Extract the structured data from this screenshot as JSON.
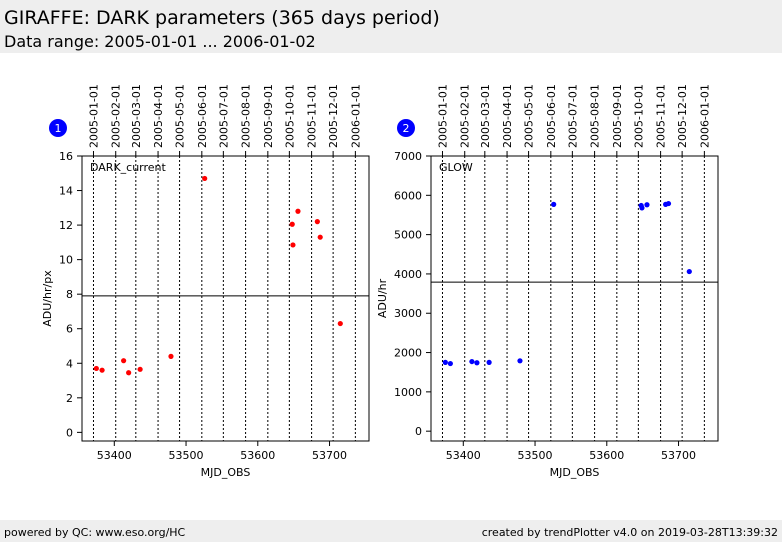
{
  "header": {
    "title": "GIRAFFE: DARK parameters (365 days period)",
    "range": "Data range: 2005-01-01 ... 2006-01-02"
  },
  "footer": {
    "left": "powered by QC: www.eso.org/HC",
    "right": "created by trendPlotter v4.0 on 2019-03-28T13:39:32"
  },
  "colors": {
    "panel1_points": "#ff0000",
    "panel2_points": "#0000ff",
    "badge": "#0000ff",
    "reference_line": "#000000"
  },
  "chart_data": [
    {
      "type": "scatter",
      "badge": "1",
      "annotation": "DARK_current",
      "xlabel": "MJD_OBS",
      "ylabel": "ADU/hr/px",
      "xlim": [
        53355,
        53755
      ],
      "ylim": [
        -0.5,
        16
      ],
      "xticks": [
        53400,
        53500,
        53600,
        53700
      ],
      "yticks": [
        0,
        2,
        4,
        6,
        8,
        10,
        12,
        14,
        16
      ],
      "date_ticks": [
        {
          "mjd": 53371,
          "label": "2005-01-01"
        },
        {
          "mjd": 53402,
          "label": "2005-02-01"
        },
        {
          "mjd": 53430,
          "label": "2005-03-01"
        },
        {
          "mjd": 53461,
          "label": "2005-04-01"
        },
        {
          "mjd": 53491,
          "label": "2005-05-01"
        },
        {
          "mjd": 53522,
          "label": "2005-06-01"
        },
        {
          "mjd": 53552,
          "label": "2005-07-01"
        },
        {
          "mjd": 53583,
          "label": "2005-08-01"
        },
        {
          "mjd": 53614,
          "label": "2005-09-01"
        },
        {
          "mjd": 53644,
          "label": "2005-10-01"
        },
        {
          "mjd": 53675,
          "label": "2005-11-01"
        },
        {
          "mjd": 53705,
          "label": "2005-12-01"
        },
        {
          "mjd": 53736,
          "label": "2006-01-01"
        }
      ],
      "reference_line": 7.9,
      "x": [
        53375,
        53383,
        53413,
        53420,
        53436,
        53479,
        53526,
        53648,
        53649,
        53656,
        53683,
        53687,
        53715
      ],
      "y": [
        3.7,
        3.6,
        4.15,
        3.45,
        3.65,
        4.4,
        14.7,
        12.05,
        10.85,
        12.8,
        12.2,
        11.3,
        6.3
      ]
    },
    {
      "type": "scatter",
      "badge": "2",
      "annotation": "GLOW",
      "xlabel": "MJD_OBS",
      "ylabel": "ADU/hr",
      "xlim": [
        53355,
        53755
      ],
      "ylim": [
        -250,
        7000
      ],
      "xticks": [
        53400,
        53500,
        53600,
        53700
      ],
      "yticks": [
        0,
        1000,
        2000,
        3000,
        4000,
        5000,
        6000,
        7000
      ],
      "date_ticks": [
        {
          "mjd": 53371,
          "label": "2005-01-01"
        },
        {
          "mjd": 53402,
          "label": "2005-02-01"
        },
        {
          "mjd": 53430,
          "label": "2005-03-01"
        },
        {
          "mjd": 53461,
          "label": "2005-04-01"
        },
        {
          "mjd": 53491,
          "label": "2005-05-01"
        },
        {
          "mjd": 53522,
          "label": "2005-06-01"
        },
        {
          "mjd": 53552,
          "label": "2005-07-01"
        },
        {
          "mjd": 53583,
          "label": "2005-08-01"
        },
        {
          "mjd": 53614,
          "label": "2005-09-01"
        },
        {
          "mjd": 53644,
          "label": "2005-10-01"
        },
        {
          "mjd": 53675,
          "label": "2005-11-01"
        },
        {
          "mjd": 53705,
          "label": "2005-12-01"
        },
        {
          "mjd": 53736,
          "label": "2006-01-01"
        }
      ],
      "reference_line": 3790,
      "x": [
        53375,
        53382,
        53412,
        53419,
        53436,
        53479,
        53526,
        53648,
        53649,
        53656,
        53682,
        53686,
        53715
      ],
      "y": [
        1750,
        1720,
        1770,
        1740,
        1750,
        1790,
        5770,
        5740,
        5680,
        5760,
        5770,
        5790,
        4060
      ]
    }
  ]
}
